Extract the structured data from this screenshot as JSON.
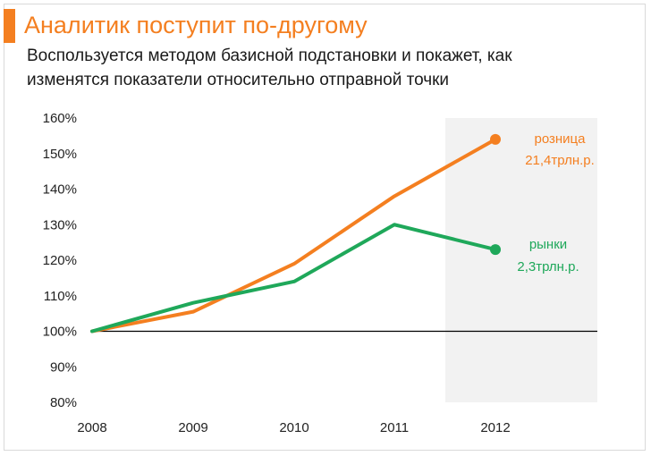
{
  "header": {
    "title": "Аналитик поступит по-другому",
    "subtitle_line1": "Воспользуется методом базисной подстановки и покажет, как",
    "subtitle_line2": "изменятся показатели относительно отправной точки"
  },
  "colors": {
    "accent": "#f47f20",
    "retail": "#f47f20",
    "markets": "#1fa85a",
    "highlight": "#f2f2f2",
    "baseline": "#000000"
  },
  "chart_data": {
    "type": "line",
    "title": "Аналитик поступит по-другому",
    "xlabel": "",
    "ylabel": "",
    "categories": [
      "2008",
      "2009",
      "2010",
      "2011",
      "2012"
    ],
    "ylim": [
      80,
      160
    ],
    "yticks": [
      160,
      150,
      140,
      130,
      120,
      110,
      100,
      90,
      80
    ],
    "ytick_labels": [
      "160%",
      "150%",
      "140%",
      "130%",
      "120%",
      "110%",
      "100%",
      "90%",
      "80%"
    ],
    "baseline_value": 100,
    "highlighted_category": "2012",
    "grid": false,
    "series": [
      {
        "name": "розница",
        "values": [
          100,
          105.5,
          119,
          138,
          154
        ],
        "label_line1": "розница",
        "label_line2": "21,4трлн.р.",
        "color": "#f47f20"
      },
      {
        "name": "рынки",
        "values": [
          100,
          108,
          114,
          130,
          123
        ],
        "label_line1": "рынки",
        "label_line2": "2,3трлн.р.",
        "color": "#1fa85a"
      }
    ]
  }
}
